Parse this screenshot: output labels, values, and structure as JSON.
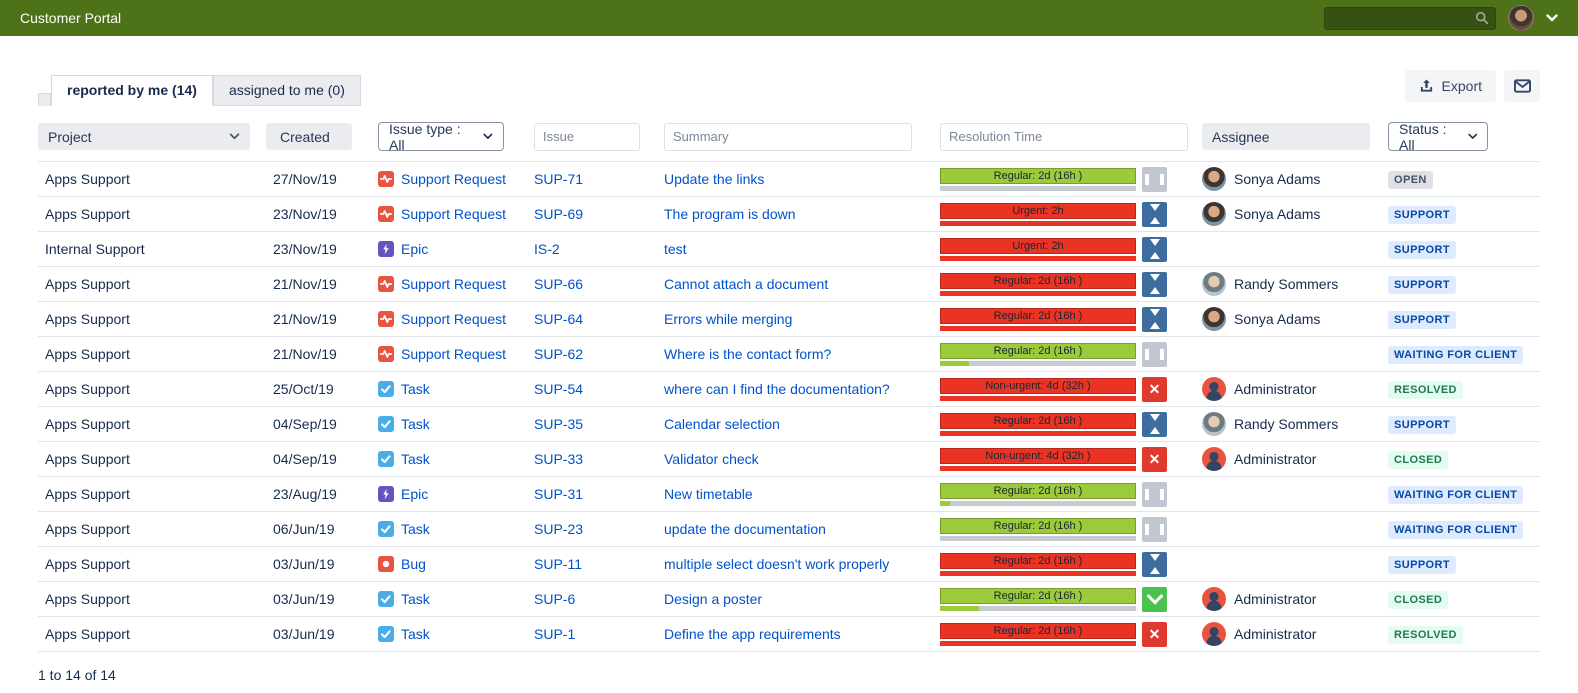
{
  "topbar": {
    "title": "Customer Portal",
    "search_placeholder": ""
  },
  "tabs": [
    {
      "label": "reported by me (14)",
      "active": true
    },
    {
      "label": "assigned to me (0)",
      "active": false
    }
  ],
  "toolbar": {
    "export_label": "Export"
  },
  "filters": {
    "project_label": "Project",
    "created_label": "Created",
    "issue_type_label": "Issue type : All",
    "issue_placeholder": "Issue",
    "summary_placeholder": "Summary",
    "resolution_placeholder": "Resolution Time",
    "assignee_label": "Assignee",
    "status_label": "Status : All"
  },
  "rows": [
    {
      "project": "Apps Support",
      "created": "27/Nov/19",
      "type": "Support Request",
      "type_kind": "support-request",
      "key": "SUP-71",
      "summary": "Update the links",
      "sla": {
        "label": "Regular: 2d (16h )",
        "color": "green",
        "progress": 0,
        "progress_color": "gray"
      },
      "state_icon": "pause",
      "assignee": {
        "name": "Sonya Adams",
        "avatar": "sonya"
      },
      "status": {
        "label": "OPEN",
        "style": "gray"
      }
    },
    {
      "project": "Apps Support",
      "created": "23/Nov/19",
      "type": "Support Request",
      "type_kind": "support-request",
      "key": "SUP-69",
      "summary": "The program is down",
      "sla": {
        "label": "Urgent: 2h",
        "color": "red",
        "progress": 100,
        "progress_color": "red"
      },
      "state_icon": "hourglass",
      "assignee": {
        "name": "Sonya Adams",
        "avatar": "sonya"
      },
      "status": {
        "label": "SUPPORT",
        "style": "blue"
      }
    },
    {
      "project": "Internal Support",
      "created": "23/Nov/19",
      "type": "Epic",
      "type_kind": "epic",
      "key": "IS-2",
      "summary": "test",
      "sla": {
        "label": "Urgent: 2h",
        "color": "red",
        "progress": 100,
        "progress_color": "red"
      },
      "state_icon": "hourglass",
      "assignee": {
        "name": "",
        "avatar": ""
      },
      "status": {
        "label": "SUPPORT",
        "style": "blue"
      }
    },
    {
      "project": "Apps Support",
      "created": "21/Nov/19",
      "type": "Support Request",
      "type_kind": "support-request",
      "key": "SUP-66",
      "summary": "Cannot attach a document",
      "sla": {
        "label": "Regular: 2d (16h )",
        "color": "red",
        "progress": 100,
        "progress_color": "red"
      },
      "state_icon": "hourglass",
      "assignee": {
        "name": "Randy Sommers",
        "avatar": "randy"
      },
      "status": {
        "label": "SUPPORT",
        "style": "blue"
      }
    },
    {
      "project": "Apps Support",
      "created": "21/Nov/19",
      "type": "Support Request",
      "type_kind": "support-request",
      "key": "SUP-64",
      "summary": "Errors while merging",
      "sla": {
        "label": "Regular: 2d (16h )",
        "color": "red",
        "progress": 100,
        "progress_color": "red"
      },
      "state_icon": "hourglass",
      "assignee": {
        "name": "Sonya Adams",
        "avatar": "sonya"
      },
      "status": {
        "label": "SUPPORT",
        "style": "blue"
      }
    },
    {
      "project": "Apps Support",
      "created": "21/Nov/19",
      "type": "Support Request",
      "type_kind": "support-request",
      "key": "SUP-62",
      "summary": "Where is the contact form?",
      "sla": {
        "label": "Regular: 2d (16h )",
        "color": "green",
        "progress": 15,
        "progress_color": "green"
      },
      "state_icon": "pause",
      "assignee": {
        "name": "",
        "avatar": ""
      },
      "status": {
        "label": "WAITING FOR CLIENT",
        "style": "blue"
      }
    },
    {
      "project": "Apps Support",
      "created": "25/Oct/19",
      "type": "Task",
      "type_kind": "task",
      "key": "SUP-54",
      "summary": "where can I find the documentation?",
      "sla": {
        "label": "Non-urgent: 4d (32h )",
        "color": "red",
        "progress": 100,
        "progress_color": "red"
      },
      "state_icon": "x",
      "assignee": {
        "name": "Administrator",
        "avatar": "admin"
      },
      "status": {
        "label": "RESOLVED",
        "style": "green"
      }
    },
    {
      "project": "Apps Support",
      "created": "04/Sep/19",
      "type": "Task",
      "type_kind": "task",
      "key": "SUP-35",
      "summary": "Calendar selection",
      "sla": {
        "label": "Regular: 2d (16h )",
        "color": "red",
        "progress": 100,
        "progress_color": "red"
      },
      "state_icon": "hourglass",
      "assignee": {
        "name": "Randy Sommers",
        "avatar": "randy"
      },
      "status": {
        "label": "SUPPORT",
        "style": "blue"
      }
    },
    {
      "project": "Apps Support",
      "created": "04/Sep/19",
      "type": "Task",
      "type_kind": "task",
      "key": "SUP-33",
      "summary": "Validator check",
      "sla": {
        "label": "Non-urgent: 4d (32h )",
        "color": "red",
        "progress": 100,
        "progress_color": "red"
      },
      "state_icon": "x",
      "assignee": {
        "name": "Administrator",
        "avatar": "admin"
      },
      "status": {
        "label": "CLOSED",
        "style": "green"
      }
    },
    {
      "project": "Apps Support",
      "created": "23/Aug/19",
      "type": "Epic",
      "type_kind": "epic",
      "key": "SUP-31",
      "summary": "New timetable",
      "sla": {
        "label": "Regular: 2d (16h )",
        "color": "green",
        "progress": 5,
        "progress_color": "green"
      },
      "state_icon": "pause",
      "assignee": {
        "name": "",
        "avatar": ""
      },
      "status": {
        "label": "WAITING FOR CLIENT",
        "style": "blue"
      }
    },
    {
      "project": "Apps Support",
      "created": "06/Jun/19",
      "type": "Task",
      "type_kind": "task",
      "key": "SUP-23",
      "summary": "update the documentation",
      "sla": {
        "label": "Regular: 2d (16h )",
        "color": "green",
        "progress": 0,
        "progress_color": "gray"
      },
      "state_icon": "pause",
      "assignee": {
        "name": "",
        "avatar": ""
      },
      "status": {
        "label": "WAITING FOR CLIENT",
        "style": "blue"
      }
    },
    {
      "project": "Apps Support",
      "created": "03/Jun/19",
      "type": "Bug",
      "type_kind": "bug",
      "key": "SUP-11",
      "summary": "multiple select doesn't work properly",
      "sla": {
        "label": "Regular: 2d (16h )",
        "color": "red",
        "progress": 100,
        "progress_color": "red"
      },
      "state_icon": "hourglass",
      "assignee": {
        "name": "",
        "avatar": ""
      },
      "status": {
        "label": "SUPPORT",
        "style": "blue"
      }
    },
    {
      "project": "Apps Support",
      "created": "03/Jun/19",
      "type": "Task",
      "type_kind": "task",
      "key": "SUP-6",
      "summary": "Design a poster",
      "sla": {
        "label": "Regular: 2d (16h )",
        "color": "green",
        "progress": 20,
        "progress_color": "green"
      },
      "state_icon": "check",
      "assignee": {
        "name": "Administrator",
        "avatar": "admin"
      },
      "status": {
        "label": "CLOSED",
        "style": "green"
      }
    },
    {
      "project": "Apps Support",
      "created": "03/Jun/19",
      "type": "Task",
      "type_kind": "task",
      "key": "SUP-1",
      "summary": "Define the app requirements",
      "sla": {
        "label": "Regular: 2d (16h )",
        "color": "red",
        "progress": 100,
        "progress_color": "red"
      },
      "state_icon": "x",
      "assignee": {
        "name": "Administrator",
        "avatar": "admin"
      },
      "status": {
        "label": "RESOLVED",
        "style": "green"
      }
    }
  ],
  "footer": {
    "range_text": "1 to 14 of 14"
  },
  "colors": {
    "topbar_green": "#4E7218",
    "link_blue": "#0052CC",
    "sla_green": "#9BCB3B",
    "sla_red": "#EB3324",
    "badge_gray_bg": "#DFE1E6",
    "badge_gray_text": "#42526E",
    "badge_blue_bg": "#DEEBFF",
    "badge_blue_text": "#0747A6",
    "badge_green_bg": "#E3FCEF",
    "badge_green_text": "#1F7A52"
  },
  "icons": {
    "search": "magnifier",
    "user_menu": "chevron-down",
    "export": "upload-arrow",
    "mail": "envelope",
    "pause": "sla-paused",
    "hourglass": "sla-running",
    "x": "sla-breached",
    "check": "sla-met"
  }
}
